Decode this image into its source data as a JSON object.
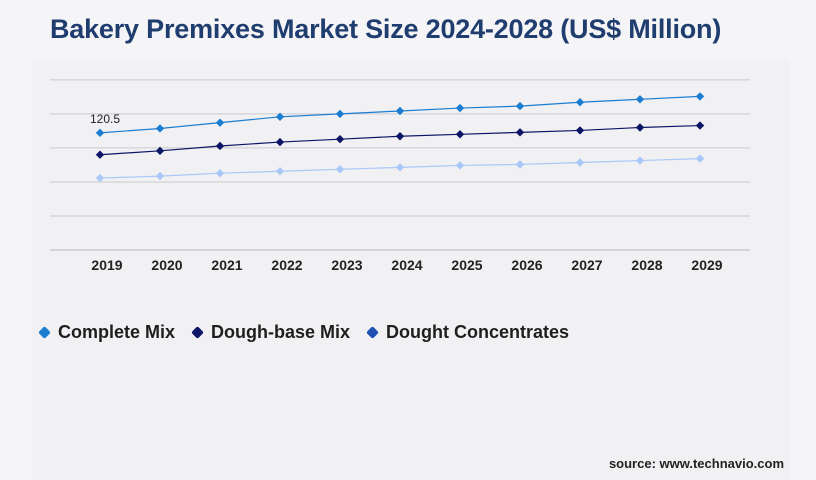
{
  "title": "Bakery Premixes Market Size 2024-2028 (US$ Million)",
  "source": "source: www.technavio.com",
  "chart_data": {
    "type": "line",
    "title": "Bakery Premixes Market Size 2024-2028 (US$ Million)",
    "categories": [
      "2019",
      "2020",
      "2021",
      "2022",
      "2023",
      "2024",
      "2025",
      "2026",
      "2027",
      "2028",
      "2029"
    ],
    "ylim": [
      0,
      180
    ],
    "grid": true,
    "legend_position": "bottom-left",
    "series": [
      {
        "name": "Complete Mix",
        "color": "#1a7dd1",
        "values": [
          120.5,
          125,
          131,
          137,
          140,
          143,
          146,
          148,
          152,
          155,
          158
        ]
      },
      {
        "name": "Dough-base Mix",
        "color": "#0d1566",
        "values": [
          98,
          102,
          107,
          111,
          114,
          117,
          119,
          121,
          123,
          126,
          128
        ]
      },
      {
        "name": "Dought Concentrates",
        "color": "#a9c7f7",
        "values": [
          74,
          76,
          79,
          81,
          83,
          85,
          87,
          88,
          90,
          92,
          94
        ]
      }
    ],
    "annotations": [
      {
        "series": "Complete Mix",
        "x": "2019",
        "text": "120.5"
      }
    ]
  },
  "legend": [
    {
      "label": "Complete Mix",
      "color": "#1a7dd1"
    },
    {
      "label": "Dough-base Mix",
      "color": "#0d1566"
    },
    {
      "label": "Dought Concentrates",
      "color": "#1f4fb3"
    }
  ]
}
